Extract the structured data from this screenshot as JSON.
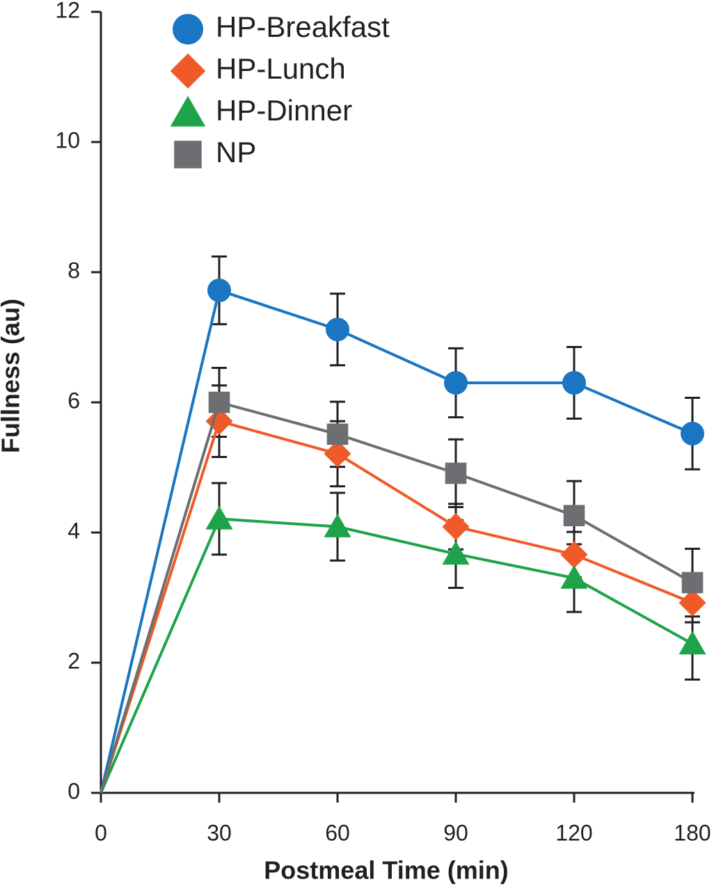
{
  "chart_data": {
    "type": "line",
    "x_label": "Postmeal Time (min)",
    "y_label": "Fullness (au)",
    "categories": [
      "0",
      "30",
      "60",
      "90",
      "120",
      "180"
    ],
    "ylim": [
      0,
      12
    ],
    "yticks": [
      0,
      2,
      4,
      6,
      8,
      10,
      12
    ],
    "legend": "upper left",
    "series": [
      {
        "name": "HP-Breakfast",
        "color": "#1a75c2",
        "marker": "circle",
        "values": [
          0,
          7.72,
          7.12,
          6.3,
          6.3,
          5.52
        ],
        "errors": [
          null,
          0.52,
          0.55,
          0.53,
          0.55,
          0.55
        ]
      },
      {
        "name": "HP-Lunch",
        "color": "#f05a28",
        "marker": "diamond",
        "values": [
          0,
          5.71,
          5.21,
          4.09,
          3.66,
          2.92
        ],
        "errors": [
          null,
          0.55,
          0.5,
          0.35,
          0.35,
          0.3
        ]
      },
      {
        "name": "HP-Dinner",
        "color": "#1ea34a",
        "marker": "triangle",
        "values": [
          0,
          4.21,
          4.09,
          3.67,
          3.3,
          2.29
        ],
        "errors": [
          null,
          0.55,
          0.52,
          0.52,
          0.52,
          0.55
        ]
      },
      {
        "name": "NP",
        "color": "#6d6e71",
        "marker": "square",
        "values": [
          0,
          6.0,
          5.51,
          4.91,
          4.26,
          3.23
        ],
        "errors": [
          null,
          0.53,
          0.5,
          0.52,
          0.53,
          0.52
        ]
      }
    ]
  }
}
